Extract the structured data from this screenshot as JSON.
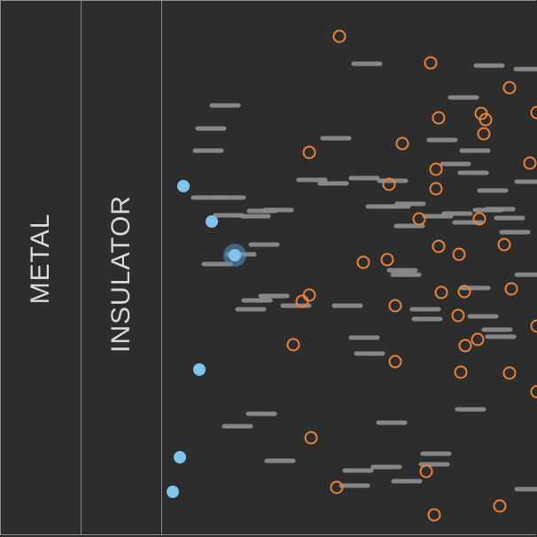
{
  "regions": {
    "metal_label": "METAL",
    "insulator_label": "INSULATOR"
  },
  "colors": {
    "background": "#2d2d2d",
    "region_border": "#8a8a8a",
    "label_text": "#d8d8d8",
    "electron": "#7fc4ef",
    "hole": "#e8823a",
    "dipole": "#8c8c8c",
    "highlight_ring": "#5a93bd"
  },
  "icons": {
    "electron": "filled-blue-circle",
    "hole": "hollow-orange-circle",
    "dipole": "gray-dash",
    "selected": "halo-ring"
  }
}
